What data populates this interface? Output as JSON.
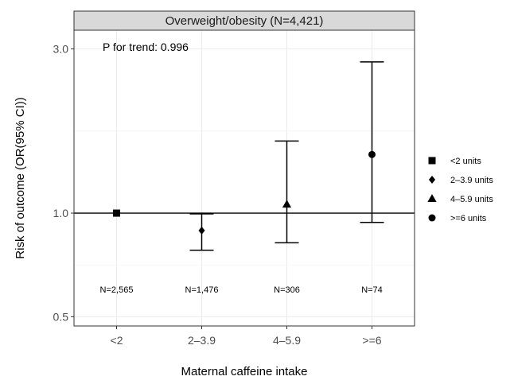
{
  "chart_data": {
    "type": "scatter",
    "panel_title": "Overweight/obesity (N=4,421)",
    "annotation": "P for trend: 0.996",
    "xlabel": "Maternal caffeine intake",
    "ylabel": "Risk of outcome (OR(95% CI))",
    "y_scale": "log",
    "ylim": [
      0.47,
      3.4
    ],
    "y_ticks": [
      0.5,
      1.0,
      3.0
    ],
    "y_tick_labels": [
      "0.5",
      "1.0",
      "3.0"
    ],
    "reference_line": 1.0,
    "grid": true,
    "legend_position": "right",
    "categories": [
      "<2",
      "2–3.9",
      "4–5.9",
      ">=6"
    ],
    "series": [
      {
        "category": "<2",
        "legend": "<2 units",
        "shape": "square",
        "or": 1.0,
        "ci_low": null,
        "ci_high": null,
        "n_label": "N=2,565"
      },
      {
        "category": "2–3.9",
        "legend": "2–3.9 units",
        "shape": "diamond",
        "or": 0.89,
        "ci_low": 0.78,
        "ci_high": 0.995,
        "n_label": "N=1,476"
      },
      {
        "category": "4–5.9",
        "legend": "4–5.9 units",
        "shape": "triangle",
        "or": 1.06,
        "ci_low": 0.82,
        "ci_high": 1.62,
        "n_label": "N=306"
      },
      {
        "category": ">=6",
        "legend": ">=6 units",
        "shape": "circle",
        "or": 1.48,
        "ci_low": 0.94,
        "ci_high": 2.75,
        "n_label": "N=74"
      }
    ],
    "n_label_y": 0.6
  }
}
